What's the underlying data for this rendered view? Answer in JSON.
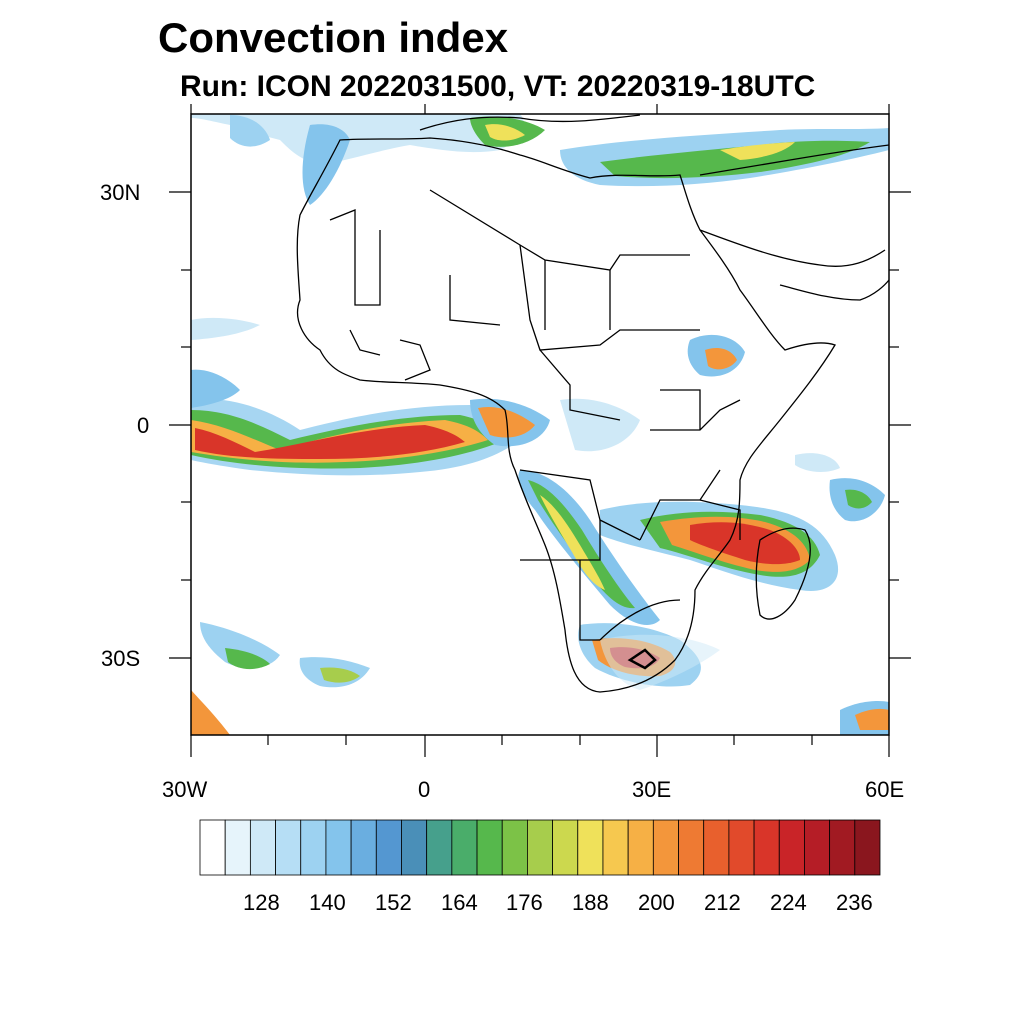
{
  "title": "Convection index",
  "subtitle": "Run: ICON 2022031500,  VT: 20220319-18UTC",
  "axes": {
    "lat_labels": [
      "30N",
      "0",
      "30S"
    ],
    "lon_labels": [
      "30W",
      "0",
      "30E",
      "60E"
    ]
  },
  "colorbar": {
    "tick_labels": [
      "128",
      "140",
      "152",
      "164",
      "176",
      "188",
      "200",
      "212",
      "224",
      "236"
    ],
    "colors": [
      "#ffffff",
      "#e6f4fb",
      "#cfe9f7",
      "#b6def5",
      "#9dd2f1",
      "#84c4ec",
      "#6aaee0",
      "#5497d1",
      "#4a8fb8",
      "#46a08c",
      "#4aad6a",
      "#56b84c",
      "#7cc247",
      "#a7cd4c",
      "#ccd84e",
      "#efe15a",
      "#f6c84f",
      "#f6b045",
      "#f3963b",
      "#ee7a33",
      "#e8602d",
      "#e14a2b",
      "#d93529",
      "#c92428",
      "#b51d26",
      "#a11a22",
      "#8a161e"
    ]
  }
}
